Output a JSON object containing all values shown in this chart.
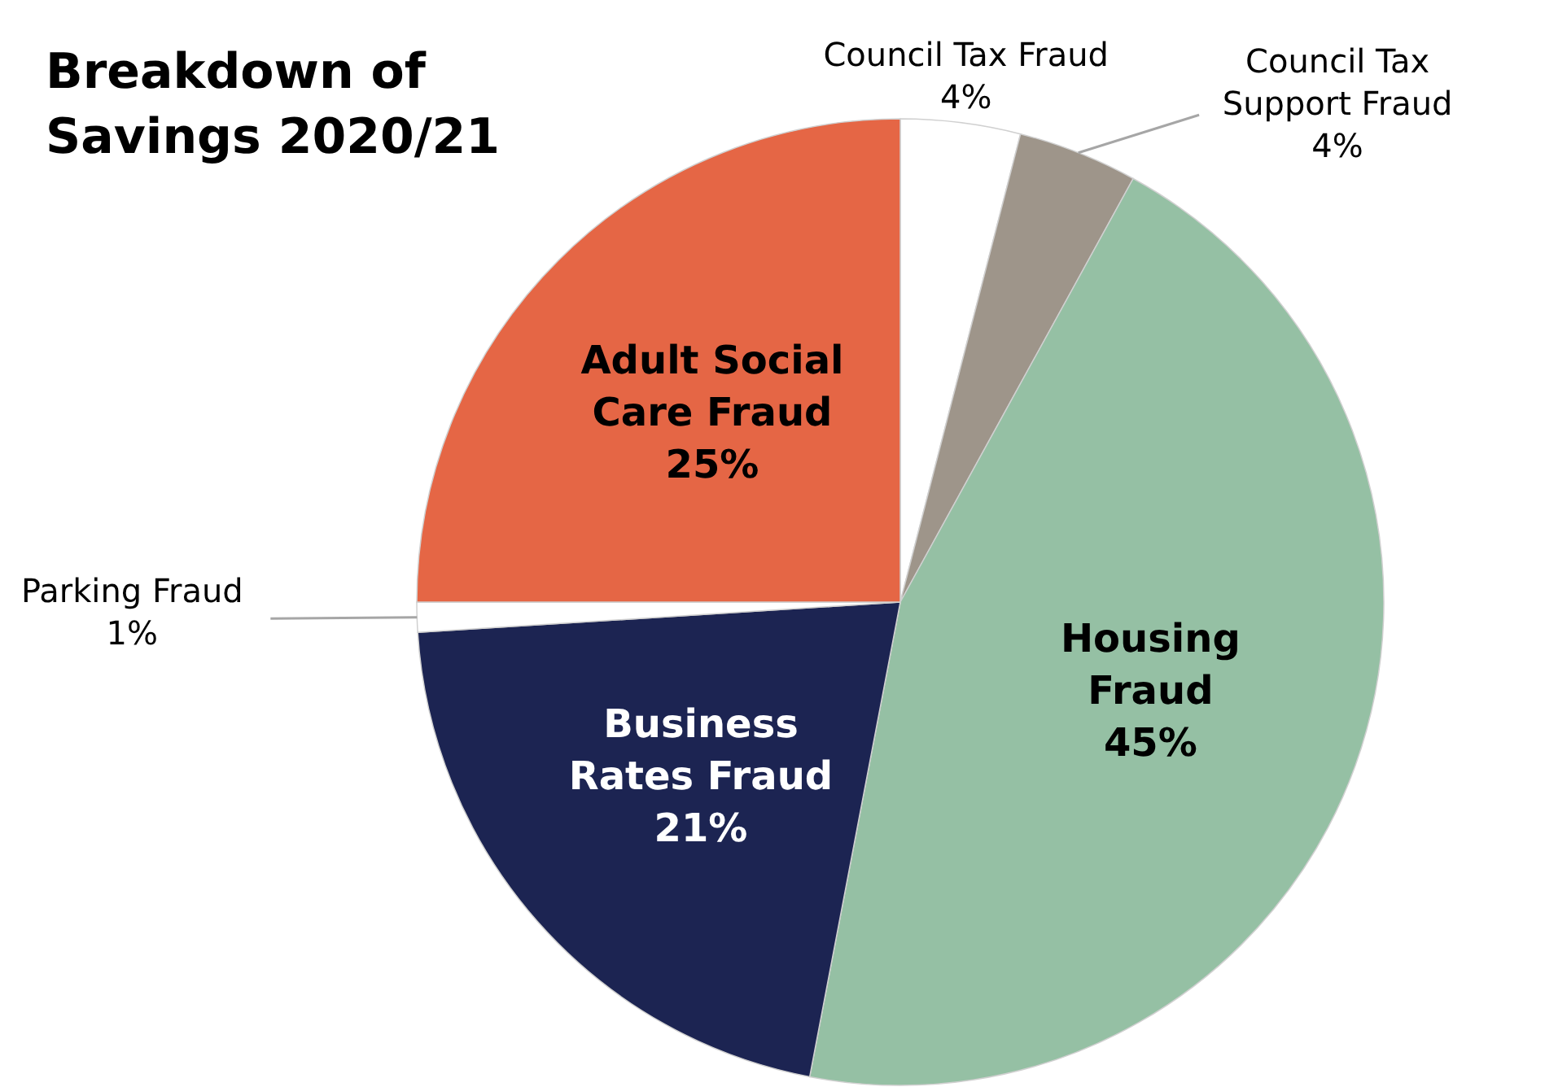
{
  "chart_data": {
    "type": "pie",
    "title": "Breakdown of Savings 2020/21",
    "categories": [
      "Council Tax Fraud",
      "Council Tax Support Fraud",
      "Housing Fraud",
      "Business Rates Fraud",
      "Parking Fraud",
      "Adult Social Care Fraud"
    ],
    "values": [
      4,
      4,
      45,
      21,
      1,
      25
    ],
    "colors": [
      "#ffffff",
      "#9e958a",
      "#95c0a4",
      "#1c2452",
      "#ffffff",
      "#e56645"
    ],
    "value_labels": [
      "4%",
      "4%",
      "45%",
      "21%",
      "1%",
      "25%"
    ],
    "legend": false
  }
}
